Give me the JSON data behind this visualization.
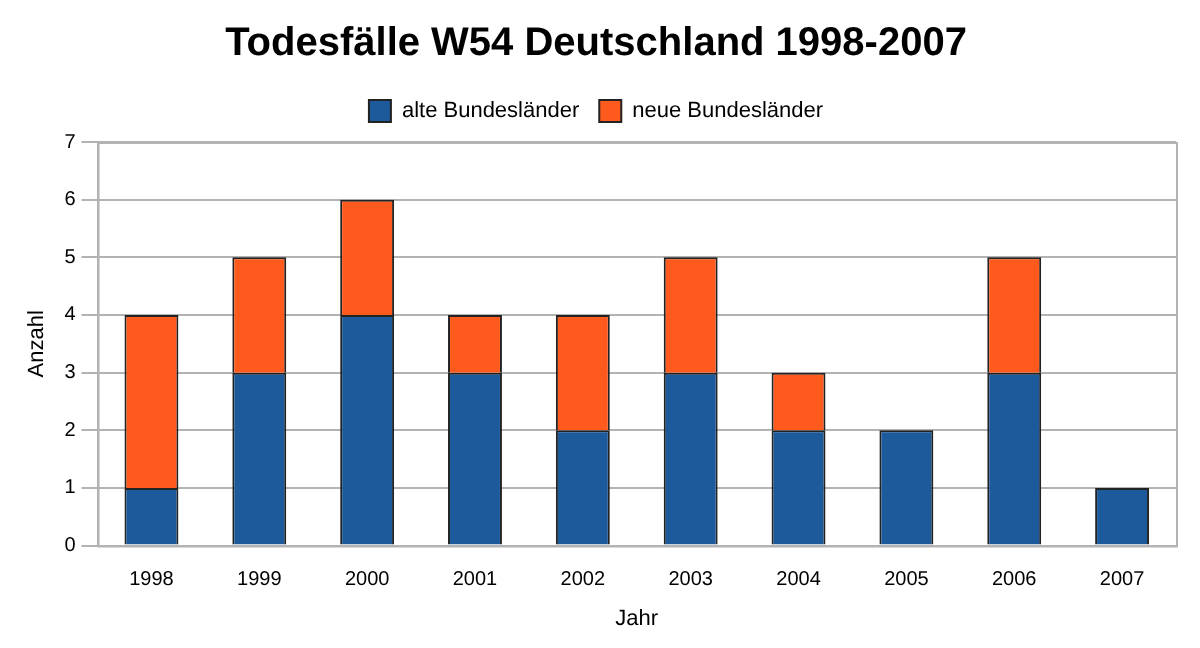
{
  "chart_data": {
    "type": "bar",
    "title": "Todesfälle W54 Deutschland 1998-2007",
    "xlabel": "Jahr",
    "ylabel": "Anzahl",
    "categories": [
      "1998",
      "1999",
      "2000",
      "2001",
      "2002",
      "2003",
      "2004",
      "2005",
      "2006",
      "2007"
    ],
    "series": [
      {
        "name": "alte Bundesländer",
        "color": "#1c5a9c",
        "values": [
          1,
          3,
          4,
          3,
          2,
          3,
          2,
          2,
          3,
          1
        ]
      },
      {
        "name": "neue Bundesländer",
        "color": "#ff5a1e",
        "values": [
          3,
          2,
          2,
          1,
          2,
          2,
          1,
          0,
          2,
          0
        ]
      }
    ],
    "stacked": true,
    "ylim": [
      0,
      7
    ],
    "yticks": [
      0,
      1,
      2,
      3,
      4,
      5,
      6,
      7
    ],
    "grid": "y",
    "legend": "top"
  }
}
